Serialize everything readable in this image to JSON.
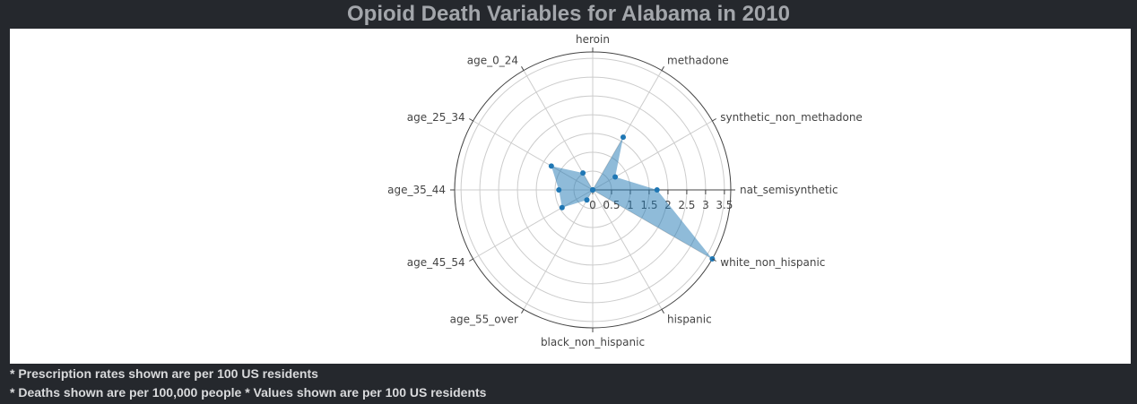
{
  "title": "Opioid Death Variables for Alabama in 2010",
  "notes": [
    "* Prescription rates shown are per 100 US residents",
    "* Deaths shown are per 100,000 people * Values shown are per 100 US residents"
  ],
  "colors": {
    "background": "#25282d",
    "fill": "#1f77b4",
    "marker": "#1f77b4",
    "grid": "#cccccc",
    "outer": "#444444"
  },
  "chart_data": {
    "type": "radar",
    "title": "Opioid Death Variables for Alabama in 2010",
    "categories": [
      "heroin",
      "methadone",
      "synthetic_non_methadone",
      "nat_semisynthetic",
      "white_non_hispanic",
      "hispanic",
      "black_non_hispanic",
      "age_55_over",
      "age_45_54",
      "age_35_44",
      "age_25_34",
      "age_0_24"
    ],
    "values": [
      0.0,
      1.62,
      0.69,
      1.71,
      3.67,
      0.0,
      0.0,
      0.31,
      0.94,
      0.9,
      1.27,
      0.52
    ],
    "radial_ticks": [
      "0",
      "0.5",
      "1",
      "1.5",
      "2",
      "2.5",
      "3",
      "3.5"
    ],
    "radial_range": [
      0,
      3.67
    ],
    "grid": true,
    "legend": "none"
  }
}
